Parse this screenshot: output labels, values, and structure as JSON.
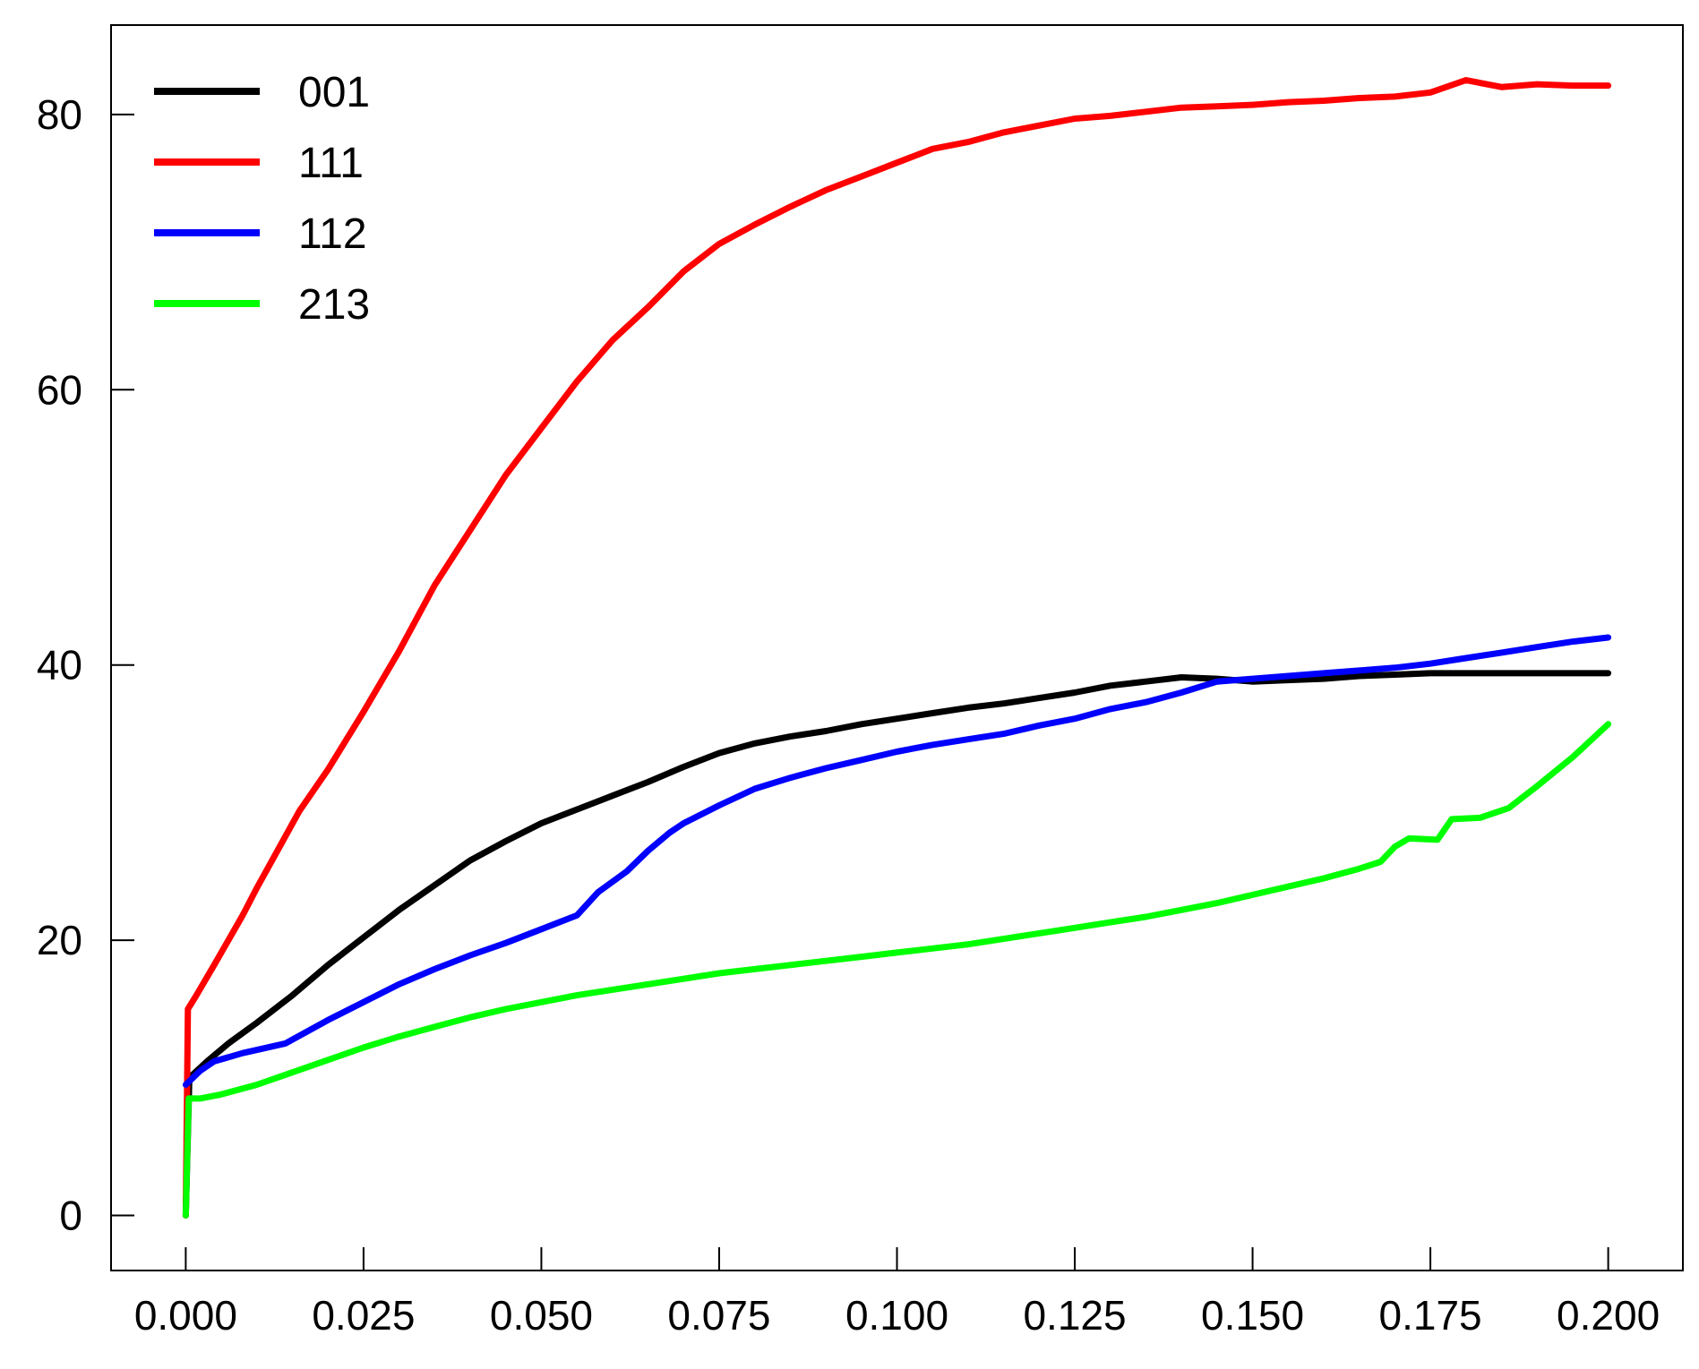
{
  "chart_data": {
    "type": "line",
    "title": "",
    "xlabel": "",
    "ylabel": "",
    "xlim": [
      -0.0105,
      0.2105
    ],
    "ylim": [
      -4,
      86.5
    ],
    "x_ticks": [
      "0.000",
      "0.025",
      "0.050",
      "0.075",
      "0.100",
      "0.125",
      "0.150",
      "0.175",
      "0.200"
    ],
    "y_ticks": [
      "0",
      "20",
      "40",
      "60",
      "80"
    ],
    "grid": false,
    "legend_position": "top-left",
    "series": [
      {
        "name": "001",
        "color": "#000000",
        "points": [
          [
            0.0,
            0
          ],
          [
            0.0005,
            10
          ],
          [
            0.003,
            11.2
          ],
          [
            0.006,
            12.5
          ],
          [
            0.01,
            14
          ],
          [
            0.015,
            16
          ],
          [
            0.02,
            18.2
          ],
          [
            0.025,
            20.2
          ],
          [
            0.03,
            22.2
          ],
          [
            0.035,
            24
          ],
          [
            0.04,
            25.8
          ],
          [
            0.045,
            27.2
          ],
          [
            0.05,
            28.5
          ],
          [
            0.055,
            29.5
          ],
          [
            0.06,
            30.5
          ],
          [
            0.065,
            31.5
          ],
          [
            0.07,
            32.6
          ],
          [
            0.075,
            33.6
          ],
          [
            0.08,
            34.3
          ],
          [
            0.085,
            34.8
          ],
          [
            0.09,
            35.2
          ],
          [
            0.095,
            35.7
          ],
          [
            0.1,
            36.1
          ],
          [
            0.105,
            36.5
          ],
          [
            0.11,
            36.9
          ],
          [
            0.115,
            37.2
          ],
          [
            0.12,
            37.6
          ],
          [
            0.125,
            38
          ],
          [
            0.13,
            38.5
          ],
          [
            0.135,
            38.8
          ],
          [
            0.14,
            39.1
          ],
          [
            0.145,
            39
          ],
          [
            0.15,
            38.8
          ],
          [
            0.155,
            38.9
          ],
          [
            0.16,
            39
          ],
          [
            0.165,
            39.2
          ],
          [
            0.17,
            39.3
          ],
          [
            0.175,
            39.4
          ],
          [
            0.18,
            39.4
          ],
          [
            0.185,
            39.4
          ],
          [
            0.19,
            39.4
          ],
          [
            0.195,
            39.4
          ],
          [
            0.2,
            39.4
          ]
        ]
      },
      {
        "name": "111",
        "color": "#ff0000",
        "points": [
          [
            0.0,
            0
          ],
          [
            0.0003,
            15
          ],
          [
            0.0015,
            16
          ],
          [
            0.004,
            18.2
          ],
          [
            0.006,
            20
          ],
          [
            0.008,
            21.8
          ],
          [
            0.01,
            23.8
          ],
          [
            0.013,
            26.6
          ],
          [
            0.016,
            29.4
          ],
          [
            0.02,
            32.4
          ],
          [
            0.025,
            36.6
          ],
          [
            0.03,
            41
          ],
          [
            0.035,
            45.8
          ],
          [
            0.04,
            49.8
          ],
          [
            0.045,
            53.8
          ],
          [
            0.05,
            57.2
          ],
          [
            0.055,
            60.6
          ],
          [
            0.06,
            63.6
          ],
          [
            0.065,
            66
          ],
          [
            0.07,
            68.6
          ],
          [
            0.075,
            70.6
          ],
          [
            0.08,
            72
          ],
          [
            0.085,
            73.3
          ],
          [
            0.09,
            74.5
          ],
          [
            0.095,
            75.5
          ],
          [
            0.1,
            76.5
          ],
          [
            0.105,
            77.5
          ],
          [
            0.11,
            78
          ],
          [
            0.115,
            78.7
          ],
          [
            0.12,
            79.2
          ],
          [
            0.125,
            79.7
          ],
          [
            0.13,
            79.9
          ],
          [
            0.135,
            80.2
          ],
          [
            0.14,
            80.5
          ],
          [
            0.145,
            80.6
          ],
          [
            0.15,
            80.7
          ],
          [
            0.155,
            80.9
          ],
          [
            0.16,
            81
          ],
          [
            0.165,
            81.2
          ],
          [
            0.17,
            81.3
          ],
          [
            0.175,
            81.6
          ],
          [
            0.18,
            82.5
          ],
          [
            0.185,
            82
          ],
          [
            0.19,
            82.2
          ],
          [
            0.195,
            82.1
          ],
          [
            0.2,
            82.1
          ]
        ]
      },
      {
        "name": "112",
        "color": "#0000ff",
        "points": [
          [
            0.0,
            9.5
          ],
          [
            0.002,
            10.5
          ],
          [
            0.004,
            11.2
          ],
          [
            0.008,
            11.8
          ],
          [
            0.014,
            12.5
          ],
          [
            0.02,
            14.2
          ],
          [
            0.025,
            15.5
          ],
          [
            0.03,
            16.8
          ],
          [
            0.035,
            17.9
          ],
          [
            0.04,
            18.9
          ],
          [
            0.045,
            19.8
          ],
          [
            0.05,
            20.8
          ],
          [
            0.055,
            21.8
          ],
          [
            0.058,
            23.5
          ],
          [
            0.062,
            25
          ],
          [
            0.065,
            26.5
          ],
          [
            0.068,
            27.8
          ],
          [
            0.07,
            28.5
          ],
          [
            0.075,
            29.8
          ],
          [
            0.08,
            31
          ],
          [
            0.085,
            31.8
          ],
          [
            0.09,
            32.5
          ],
          [
            0.095,
            33.1
          ],
          [
            0.1,
            33.7
          ],
          [
            0.105,
            34.2
          ],
          [
            0.11,
            34.6
          ],
          [
            0.115,
            35
          ],
          [
            0.12,
            35.6
          ],
          [
            0.125,
            36.1
          ],
          [
            0.13,
            36.8
          ],
          [
            0.135,
            37.3
          ],
          [
            0.14,
            38
          ],
          [
            0.145,
            38.8
          ],
          [
            0.15,
            39
          ],
          [
            0.155,
            39.2
          ],
          [
            0.16,
            39.4
          ],
          [
            0.165,
            39.6
          ],
          [
            0.17,
            39.8
          ],
          [
            0.175,
            40.1
          ],
          [
            0.18,
            40.5
          ],
          [
            0.185,
            40.9
          ],
          [
            0.19,
            41.3
          ],
          [
            0.195,
            41.7
          ],
          [
            0.2,
            42
          ]
        ]
      },
      {
        "name": "213",
        "color": "#00ff00",
        "points": [
          [
            0.0,
            0
          ],
          [
            0.0004,
            8.5
          ],
          [
            0.002,
            8.5
          ],
          [
            0.005,
            8.8
          ],
          [
            0.01,
            9.5
          ],
          [
            0.015,
            10.4
          ],
          [
            0.02,
            11.3
          ],
          [
            0.025,
            12.2
          ],
          [
            0.03,
            13
          ],
          [
            0.035,
            13.7
          ],
          [
            0.04,
            14.4
          ],
          [
            0.045,
            15
          ],
          [
            0.05,
            15.5
          ],
          [
            0.055,
            16
          ],
          [
            0.06,
            16.4
          ],
          [
            0.065,
            16.8
          ],
          [
            0.07,
            17.2
          ],
          [
            0.075,
            17.6
          ],
          [
            0.08,
            17.9
          ],
          [
            0.085,
            18.2
          ],
          [
            0.09,
            18.5
          ],
          [
            0.095,
            18.8
          ],
          [
            0.1,
            19.1
          ],
          [
            0.105,
            19.4
          ],
          [
            0.11,
            19.7
          ],
          [
            0.115,
            20.1
          ],
          [
            0.12,
            20.5
          ],
          [
            0.125,
            20.9
          ],
          [
            0.13,
            21.3
          ],
          [
            0.135,
            21.7
          ],
          [
            0.14,
            22.2
          ],
          [
            0.145,
            22.7
          ],
          [
            0.15,
            23.3
          ],
          [
            0.155,
            23.9
          ],
          [
            0.16,
            24.5
          ],
          [
            0.165,
            25.2
          ],
          [
            0.168,
            25.7
          ],
          [
            0.17,
            26.8
          ],
          [
            0.172,
            27.4
          ],
          [
            0.176,
            27.3
          ],
          [
            0.178,
            28.8
          ],
          [
            0.182,
            28.9
          ],
          [
            0.186,
            29.6
          ],
          [
            0.19,
            31.2
          ],
          [
            0.195,
            33.3
          ],
          [
            0.2,
            35.7
          ]
        ]
      }
    ]
  }
}
